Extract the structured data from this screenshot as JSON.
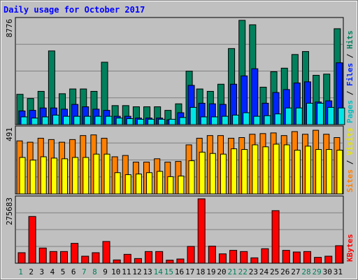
{
  "chart_data": {
    "type": "bar",
    "title": "Daily usage for October 2017",
    "categories": [
      "1",
      "2",
      "3",
      "4",
      "5",
      "6",
      "7",
      "8",
      "9",
      "10",
      "11",
      "12",
      "13",
      "14",
      "15",
      "16",
      "17",
      "18",
      "19",
      "20",
      "21",
      "22",
      "23",
      "24",
      "25",
      "26",
      "27",
      "28",
      "29",
      "30",
      "31"
    ],
    "weekend_days": [
      "1",
      "7",
      "8",
      "14",
      "15",
      "21",
      "22",
      "28",
      "29"
    ],
    "panels": [
      {
        "id": "pages-files-hits",
        "max_label": "8776",
        "ylim": [
          0,
          8776
        ],
        "legend": [
          "Pages",
          "Files",
          "Hits"
        ],
        "series": [
          {
            "name": "Hits",
            "color": "#00805c",
            "values": [
              2550,
              2200,
              2800,
              6200,
              2600,
              3000,
              3000,
              2800,
              5250,
              1600,
              1600,
              1500,
              1500,
              1500,
              1200,
              1750,
              4500,
              3000,
              2800,
              3400,
              6400,
              8776,
              8400,
              3150,
              4450,
              4750,
              5900,
              6150,
              4150,
              4250,
              8070
            ]
          },
          {
            "name": "Files",
            "color": "#0024ff",
            "values": [
              1150,
              1200,
              1400,
              1400,
              1300,
              1700,
              1500,
              1300,
              1200,
              700,
              700,
              550,
              550,
              550,
              400,
              1000,
              3300,
              1800,
              1750,
              1700,
              3400,
              4100,
              4700,
              1800,
              2700,
              2950,
              3500,
              3600,
              1900,
              2000,
              5200
            ]
          },
          {
            "name": "Pages",
            "color": "#00e6e6",
            "values": [
              650,
              550,
              650,
              800,
              700,
              700,
              700,
              700,
              700,
              550,
              500,
              450,
              450,
              450,
              450,
              600,
              1450,
              650,
              650,
              700,
              800,
              1000,
              700,
              750,
              900,
              1400,
              1400,
              1800,
              1800,
              1450,
              1400
            ]
          }
        ]
      },
      {
        "id": "sites-visits",
        "max_label": "491",
        "ylim": [
          0,
          491
        ],
        "legend": [
          "Sites",
          "Visits"
        ],
        "series": [
          {
            "name": "Sites",
            "color": "#ff8000",
            "values": [
              400,
              390,
              420,
              410,
              390,
              410,
              440,
              445,
              420,
              280,
              290,
              240,
              240,
              265,
              240,
              245,
              370,
              420,
              440,
              440,
              420,
              425,
              450,
              455,
              460,
              440,
              470,
              450,
              480,
              450,
              425
            ]
          },
          {
            "name": "Visits",
            "color": "#ffff00",
            "values": [
              275,
              255,
              280,
              270,
              265,
              275,
              275,
              300,
              300,
              160,
              145,
              150,
              160,
              170,
              130,
              135,
              250,
              315,
              305,
              300,
              340,
              335,
              370,
              355,
              375,
              370,
              330,
              360,
              335,
              335,
              330
            ]
          }
        ]
      },
      {
        "id": "kbytes",
        "max_label": "275683",
        "ylim": [
          0,
          275683
        ],
        "legend": [
          "KBytes"
        ],
        "series": [
          {
            "name": "KBytes",
            "color": "#ff0000",
            "values": [
              45000,
              200000,
              65000,
              50000,
              50000,
              85000,
              30000,
              45000,
              93000,
              14000,
              38000,
              20000,
              50000,
              50000,
              13000,
              18000,
              72000,
              275683,
              73000,
              40000,
              55000,
              50000,
              23000,
              62000,
              225000,
              55000,
              48000,
              50000,
              25000,
              30000,
              75000
            ]
          }
        ]
      }
    ]
  }
}
